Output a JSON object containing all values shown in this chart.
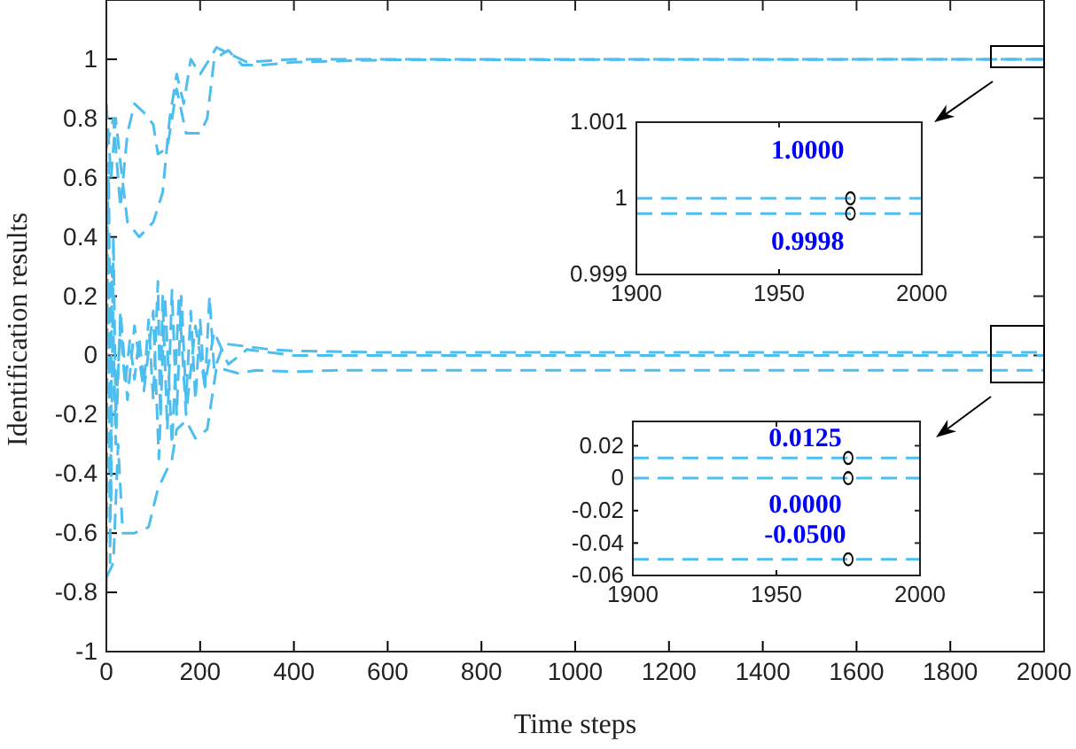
{
  "chart_data": [
    {
      "type": "line",
      "xlabel": "Time steps",
      "ylabel": "Identification results",
      "xlim": [
        0,
        2000
      ],
      "ylim": [
        -1,
        1.2
      ],
      "xticks": [
        0,
        200,
        400,
        600,
        800,
        1000,
        1200,
        1400,
        1600,
        1800,
        2000
      ],
      "yticks": [
        -1,
        -0.8,
        -0.6,
        -0.4,
        -0.2,
        0,
        0.2,
        0.4,
        0.6,
        0.8,
        1
      ],
      "grid": false,
      "line_style": "dashed",
      "series": [
        {
          "color": "#4dbeee",
          "x": [
            0,
            10,
            20,
            30,
            45,
            70,
            100,
            120,
            135,
            150,
            165,
            180,
            200,
            220,
            235,
            260,
            300,
            350,
            400,
            2000
          ],
          "values": [
            0.85,
            0.6,
            0.8,
            0.65,
            0.45,
            0.4,
            0.45,
            0.55,
            0.8,
            0.95,
            0.85,
            1.0,
            0.95,
            1.0,
            1.04,
            1.02,
            0.99,
            0.995,
            1.0,
            1.0
          ]
        },
        {
          "color": "#4dbeee",
          "x": [
            0,
            15,
            30,
            45,
            60,
            80,
            100,
            110,
            130,
            150,
            170,
            200,
            215,
            230,
            260,
            290,
            330,
            400,
            600,
            2000
          ],
          "values": [
            0.7,
            0.8,
            0.5,
            0.75,
            0.85,
            0.82,
            0.78,
            0.68,
            0.7,
            0.9,
            0.75,
            0.75,
            0.8,
            1.0,
            1.03,
            0.98,
            0.98,
            0.99,
            0.998,
            1.0
          ]
        },
        {
          "color": "#4dbeee",
          "x": [
            0,
            5,
            10,
            15,
            20,
            30,
            40,
            50,
            60,
            70,
            80,
            90,
            100,
            110,
            115,
            120,
            130,
            140,
            150,
            160,
            170,
            180,
            190,
            200,
            210,
            220,
            230,
            250,
            300,
            350,
            400,
            600,
            2000
          ],
          "values": [
            0.3,
            0.65,
            -0.5,
            0.4,
            -0.2,
            0.1,
            -0.1,
            0.05,
            -0.08,
            0.06,
            -0.1,
            0.12,
            -0.15,
            0.25,
            -0.2,
            0.2,
            -0.25,
            0.22,
            -0.2,
            0.2,
            -0.15,
            0.15,
            -0.15,
            0.12,
            -0.12,
            0.2,
            -0.05,
            0.04,
            0.03,
            0.02,
            0.015,
            0.01,
            0.01
          ]
        },
        {
          "color": "#4dbeee",
          "x": [
            0,
            3,
            8,
            12,
            20,
            30,
            45,
            60,
            80,
            100,
            112,
            125,
            140,
            155,
            170,
            190,
            210,
            230,
            260,
            300,
            400,
            2000
          ],
          "values": [
            -0.8,
            0.6,
            -0.7,
            0.3,
            -0.3,
            0.15,
            -0.15,
            0.1,
            -0.12,
            0.15,
            -0.35,
            0.2,
            -0.3,
            0.2,
            -0.2,
            0.1,
            -0.1,
            0.08,
            -0.03,
            0.02,
            0,
            0
          ]
        },
        {
          "color": "#4dbeee",
          "x": [
            0,
            15,
            25,
            35,
            60,
            90,
            110,
            140,
            150,
            170,
            190,
            215,
            235,
            280,
            320,
            400,
            500,
            2000
          ],
          "values": [
            -0.75,
            -0.7,
            -0.3,
            -0.6,
            -0.6,
            -0.58,
            -0.45,
            -0.35,
            -0.25,
            -0.22,
            -0.28,
            -0.25,
            -0.04,
            -0.06,
            -0.05,
            -0.055,
            -0.05,
            -0.05
          ]
        }
      ]
    },
    {
      "type": "line",
      "xlim": [
        1900,
        2000
      ],
      "ylim": [
        0.999,
        1.001
      ],
      "xticks": [
        1900,
        1950,
        2000
      ],
      "yticks": [
        0.999,
        1,
        1.001
      ],
      "grid": false,
      "line_style": "dashed",
      "series": [
        {
          "color": "#4dbeee",
          "x": [
            1900,
            2000
          ],
          "values": [
            1.0,
            1.0
          ]
        },
        {
          "color": "#4dbeee",
          "x": [
            1900,
            2000
          ],
          "values": [
            0.9998,
            0.9998
          ]
        },
        {
          "type": "scatter",
          "marker": "circle",
          "color": "#000000",
          "x": [
            1975,
            1975
          ],
          "values": [
            1.0,
            0.9998
          ]
        }
      ],
      "annotations": [
        "1.0000",
        "0.9998"
      ]
    },
    {
      "type": "line",
      "xlim": [
        1900,
        2000
      ],
      "ylim": [
        -0.06,
        0.035
      ],
      "xticks": [
        1900,
        1950,
        2000
      ],
      "yticks": [
        -0.06,
        -0.04,
        -0.02,
        0,
        0.02
      ],
      "grid": false,
      "line_style": "dashed",
      "series": [
        {
          "color": "#4dbeee",
          "x": [
            1900,
            2000
          ],
          "values": [
            0.0125,
            0.0125
          ]
        },
        {
          "color": "#4dbeee",
          "x": [
            1900,
            2000
          ],
          "values": [
            0,
            0
          ]
        },
        {
          "color": "#4dbeee",
          "x": [
            1900,
            2000
          ],
          "values": [
            -0.05,
            -0.05
          ]
        },
        {
          "type": "scatter",
          "marker": "circle",
          "color": "#000000",
          "x": [
            1975,
            1975,
            1975
          ],
          "values": [
            0.0125,
            0,
            -0.05
          ]
        }
      ],
      "annotations": [
        "0.0125",
        "0.0000",
        "-0.0500"
      ]
    }
  ]
}
